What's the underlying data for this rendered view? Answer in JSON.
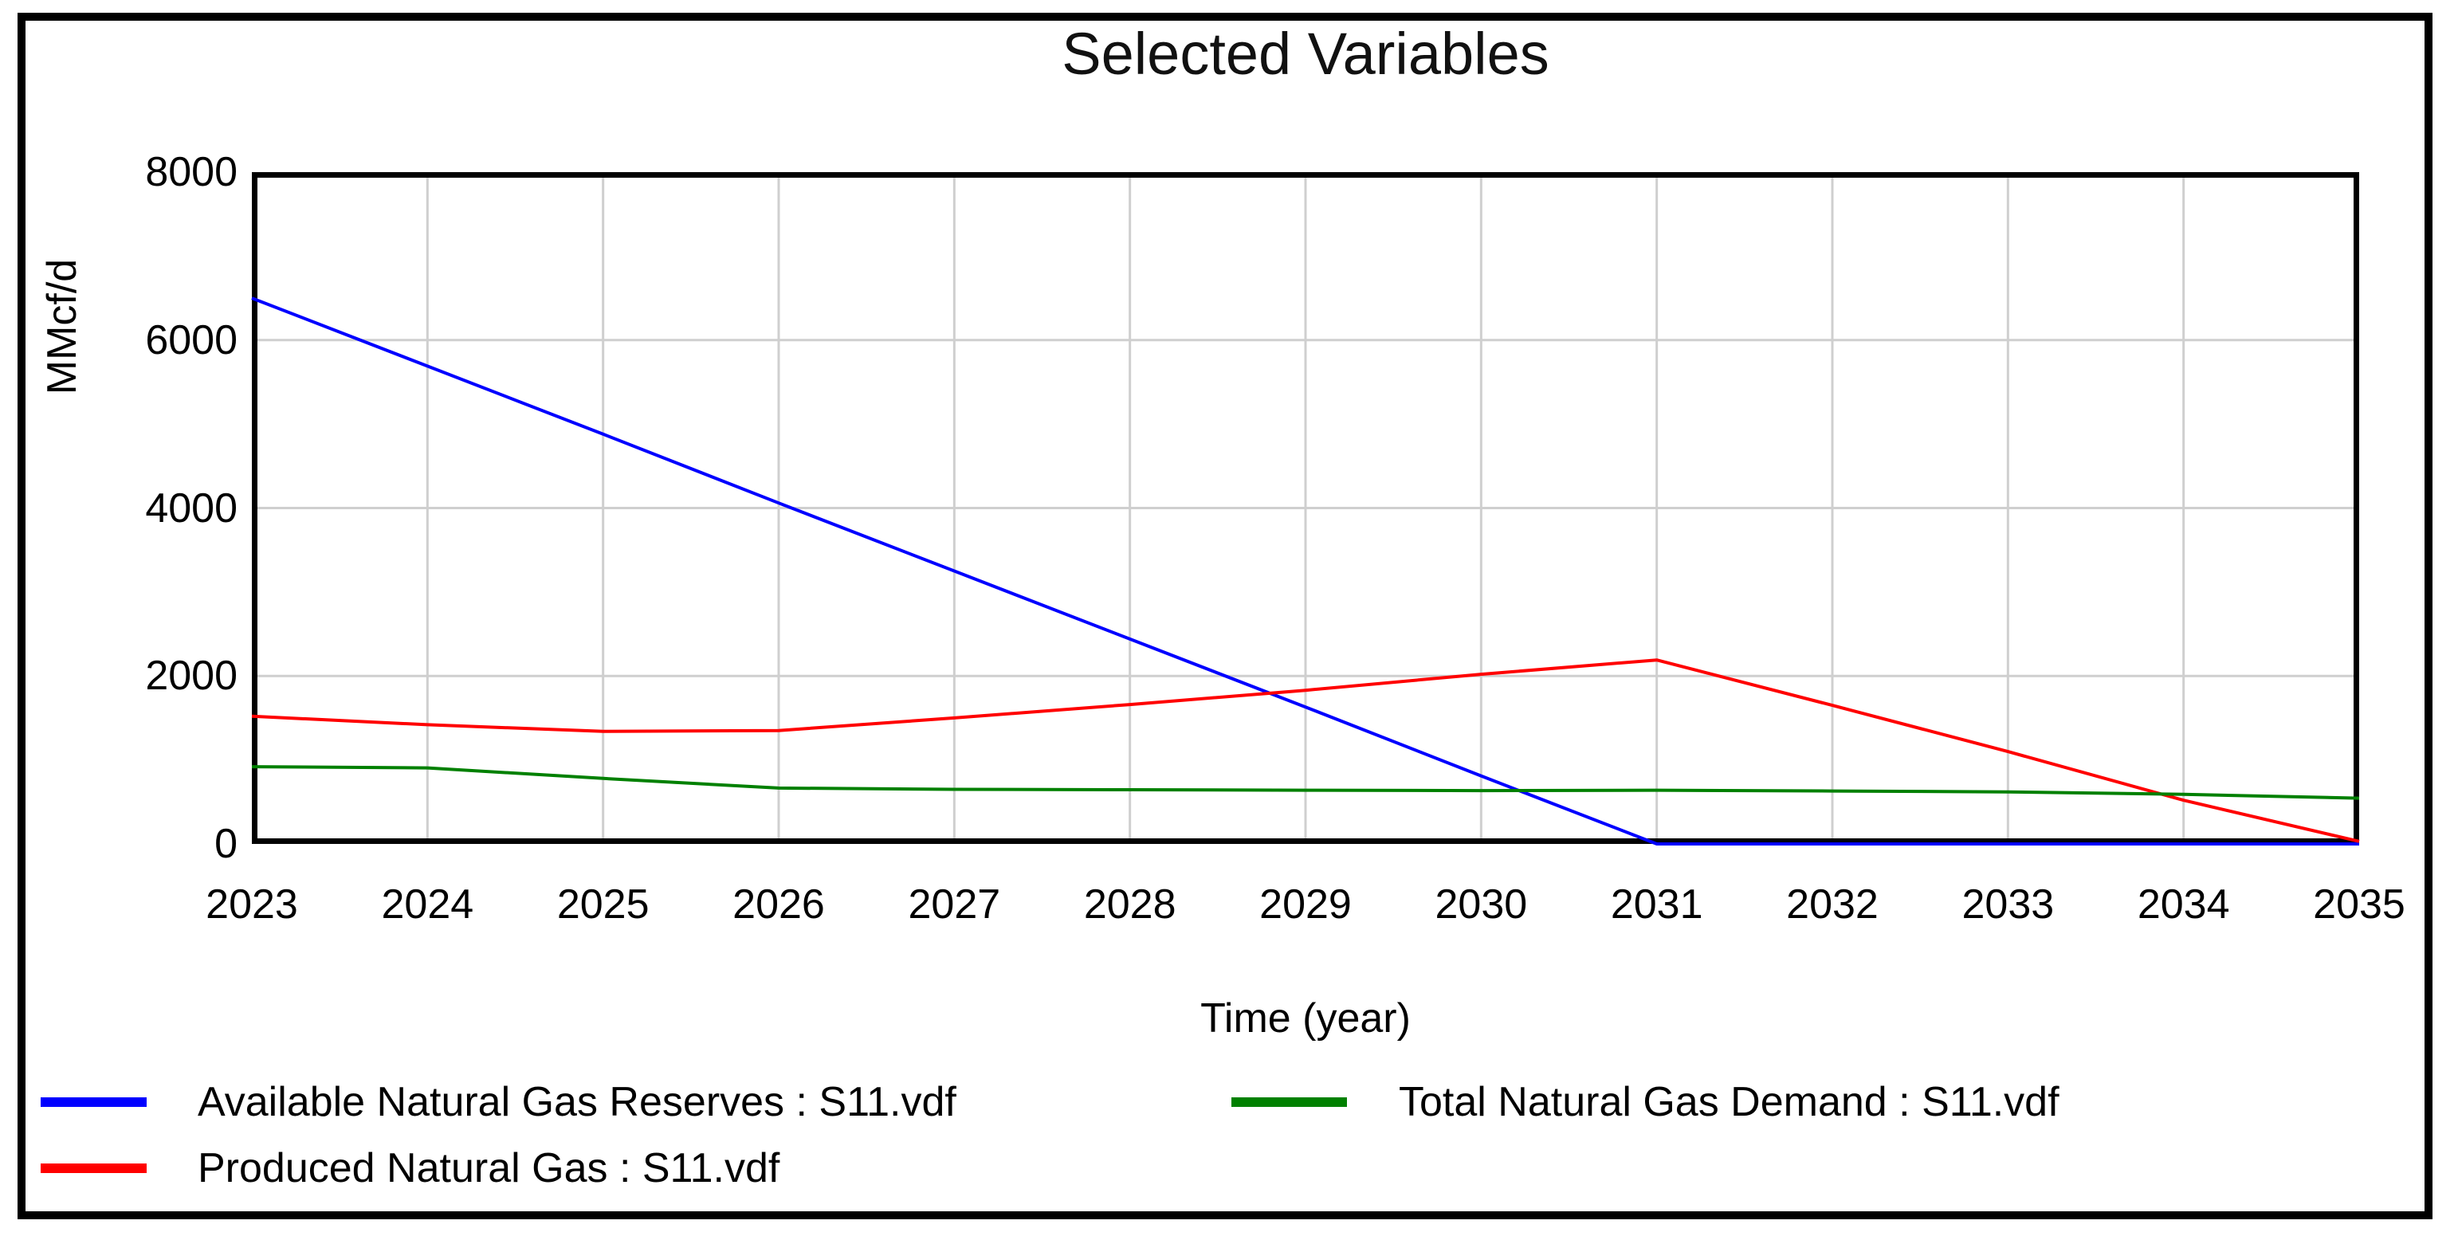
{
  "window": {
    "background_color": "#ffffff",
    "frame_color": "#000000"
  },
  "chart_data": {
    "type": "line",
    "title": "Selected Variables",
    "xlabel": "Time (year)",
    "ylabel": "MMcf/d",
    "x": [
      2023,
      2024,
      2025,
      2026,
      2027,
      2028,
      2029,
      2030,
      2031,
      2032,
      2033,
      2034,
      2035
    ],
    "xlim": [
      2023,
      2035
    ],
    "ylim": [
      0,
      8000
    ],
    "xticks": [
      "2023",
      "2024",
      "2025",
      "2026",
      "2027",
      "2028",
      "2029",
      "2030",
      "2031",
      "2032",
      "2033",
      "2034",
      "2035"
    ],
    "yticks": [
      "0",
      "2000",
      "4000",
      "6000",
      "8000"
    ],
    "grid": true,
    "gridline_color": "#cfcfcf",
    "axis_color": "#000000",
    "legend_position": "bottom",
    "series": [
      {
        "name": "Available Natural Gas Reserves : S11.vdf",
        "color": "#0000ff",
        "values": [
          6500,
          5690,
          4880,
          4060,
          3250,
          2440,
          1630,
          810,
          0,
          0,
          0,
          0,
          0
        ]
      },
      {
        "name": "Produced Natural Gas : S11.vdf",
        "color": "#ff0000",
        "values": [
          1520,
          1420,
          1340,
          1350,
          1500,
          1660,
          1830,
          2020,
          2190,
          1650,
          1100,
          520,
          30
        ]
      },
      {
        "name": "Total Natural Gas Demand : S11.vdf",
        "color": "#008000",
        "values": [
          920,
          905,
          780,
          665,
          650,
          645,
          640,
          635,
          640,
          630,
          620,
          590,
          545
        ]
      }
    ]
  }
}
